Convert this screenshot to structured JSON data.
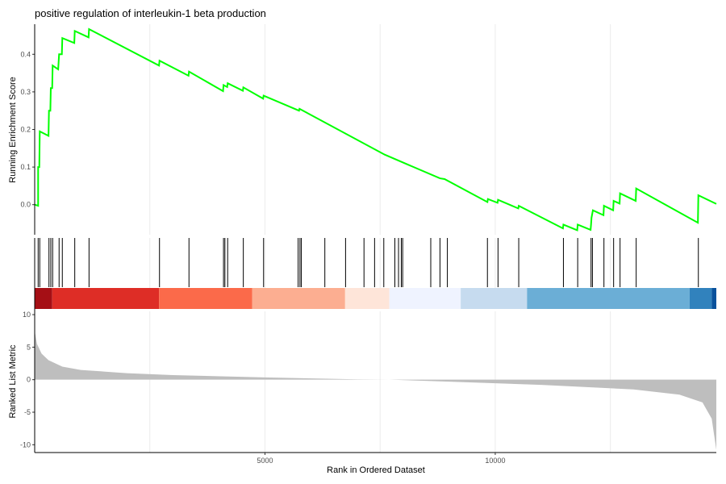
{
  "chart_data": {
    "type": "line",
    "title": "positive regulation of interleukin-1 beta production",
    "xlabel": "Rank in Ordered Dataset",
    "ylabel_top": "Running Enrichment Score",
    "ylabel_bottom": "Ranked List Metric",
    "x_ticks": [
      5000,
      10000
    ],
    "xlim": [
      0,
      14800
    ],
    "grid": true,
    "enrichment": {
      "ylim": [
        -0.08,
        0.48
      ],
      "y_ticks": [
        0.0,
        0.1,
        0.2,
        0.3,
        0.4
      ],
      "color": "#00ff00",
      "series": [
        {
          "x": 0,
          "y": 0.0
        },
        {
          "x": 75,
          "y": -0.003
        },
        {
          "x": 75,
          "y": 0.1
        },
        {
          "x": 100,
          "y": 0.1
        },
        {
          "x": 110,
          "y": 0.195
        },
        {
          "x": 300,
          "y": 0.183
        },
        {
          "x": 310,
          "y": 0.25
        },
        {
          "x": 340,
          "y": 0.25
        },
        {
          "x": 350,
          "y": 0.31
        },
        {
          "x": 380,
          "y": 0.31
        },
        {
          "x": 390,
          "y": 0.37
        },
        {
          "x": 510,
          "y": 0.36
        },
        {
          "x": 530,
          "y": 0.4
        },
        {
          "x": 590,
          "y": 0.4
        },
        {
          "x": 600,
          "y": 0.443
        },
        {
          "x": 860,
          "y": 0.43
        },
        {
          "x": 870,
          "y": 0.462
        },
        {
          "x": 1170,
          "y": 0.445
        },
        {
          "x": 1180,
          "y": 0.467
        },
        {
          "x": 2700,
          "y": 0.37
        },
        {
          "x": 2710,
          "y": 0.383
        },
        {
          "x": 3340,
          "y": 0.343
        },
        {
          "x": 3350,
          "y": 0.354
        },
        {
          "x": 4090,
          "y": 0.302
        },
        {
          "x": 4100,
          "y": 0.318
        },
        {
          "x": 4180,
          "y": 0.313
        },
        {
          "x": 4190,
          "y": 0.323
        },
        {
          "x": 4520,
          "y": 0.303
        },
        {
          "x": 4530,
          "y": 0.312
        },
        {
          "x": 4960,
          "y": 0.282
        },
        {
          "x": 4970,
          "y": 0.29
        },
        {
          "x": 5740,
          "y": 0.25
        },
        {
          "x": 5750,
          "y": 0.255
        },
        {
          "x": 7600,
          "y": 0.133
        },
        {
          "x": 8800,
          "y": 0.07
        },
        {
          "x": 8900,
          "y": 0.068
        },
        {
          "x": 9830,
          "y": 0.007
        },
        {
          "x": 9840,
          "y": 0.015
        },
        {
          "x": 10050,
          "y": 0.005
        },
        {
          "x": 10060,
          "y": 0.013
        },
        {
          "x": 10500,
          "y": -0.01
        },
        {
          "x": 10510,
          "y": -0.003
        },
        {
          "x": 11470,
          "y": -0.063
        },
        {
          "x": 11480,
          "y": -0.053
        },
        {
          "x": 11780,
          "y": -0.068
        },
        {
          "x": 11790,
          "y": -0.053
        },
        {
          "x": 12070,
          "y": -0.067
        },
        {
          "x": 12080,
          "y": -0.053
        },
        {
          "x": 12090,
          "y": -0.035
        },
        {
          "x": 12120,
          "y": -0.015
        },
        {
          "x": 12350,
          "y": -0.028
        },
        {
          "x": 12360,
          "y": -0.003
        },
        {
          "x": 12560,
          "y": -0.015
        },
        {
          "x": 12570,
          "y": 0.01
        },
        {
          "x": 12700,
          "y": 0.003
        },
        {
          "x": 12710,
          "y": 0.03
        },
        {
          "x": 13050,
          "y": 0.01
        },
        {
          "x": 13060,
          "y": 0.043
        },
        {
          "x": 14400,
          "y": -0.048
        },
        {
          "x": 14410,
          "y": 0.025
        },
        {
          "x": 14800,
          "y": 0.002
        }
      ]
    },
    "hits": [
      75,
      110,
      310,
      350,
      390,
      530,
      600,
      870,
      1180,
      2710,
      3350,
      4100,
      4130,
      4190,
      4530,
      4970,
      5720,
      5760,
      5790,
      6300,
      6750,
      7150,
      7380,
      7580,
      7820,
      7900,
      7960,
      7990,
      8600,
      8800,
      8960,
      9830,
      10060,
      10510,
      11480,
      11790,
      12080,
      12110,
      12360,
      12570,
      12710,
      13060,
      14410
    ],
    "color_bands": [
      {
        "from": 0,
        "to": 380,
        "color": "#a50f15"
      },
      {
        "from": 380,
        "to": 2700,
        "color": "#de2d26"
      },
      {
        "from": 2700,
        "to": 4720,
        "color": "#fb6a4a"
      },
      {
        "from": 4720,
        "to": 6740,
        "color": "#fcae91"
      },
      {
        "from": 6740,
        "to": 7700,
        "color": "#fee5d9"
      },
      {
        "from": 7700,
        "to": 9250,
        "color": "#eff3ff"
      },
      {
        "from": 9250,
        "to": 10690,
        "color": "#c6dbef"
      },
      {
        "from": 10690,
        "to": 14220,
        "color": "#6baed6"
      },
      {
        "from": 14220,
        "to": 14700,
        "color": "#3182bd"
      },
      {
        "from": 14700,
        "to": 14800,
        "color": "#08519c"
      }
    ],
    "ranked_metric": {
      "ylim": [
        -11.2,
        10.5
      ],
      "y_ticks": [
        10,
        5,
        0,
        -5,
        -10
      ],
      "fill_color": "#bebebe",
      "series": [
        {
          "x": 0,
          "y": 7.5
        },
        {
          "x": 50,
          "y": 5.5
        },
        {
          "x": 150,
          "y": 4.0
        },
        {
          "x": 300,
          "y": 3.0
        },
        {
          "x": 600,
          "y": 2.0
        },
        {
          "x": 1000,
          "y": 1.5
        },
        {
          "x": 2000,
          "y": 1.0
        },
        {
          "x": 3000,
          "y": 0.7
        },
        {
          "x": 5000,
          "y": 0.35
        },
        {
          "x": 7000,
          "y": 0.05
        },
        {
          "x": 7700,
          "y": 0.0
        },
        {
          "x": 9000,
          "y": -0.3
        },
        {
          "x": 11000,
          "y": -0.8
        },
        {
          "x": 13000,
          "y": -1.5
        },
        {
          "x": 14000,
          "y": -2.3
        },
        {
          "x": 14500,
          "y": -3.5
        },
        {
          "x": 14700,
          "y": -6.0
        },
        {
          "x": 14800,
          "y": -10.8
        }
      ]
    }
  }
}
